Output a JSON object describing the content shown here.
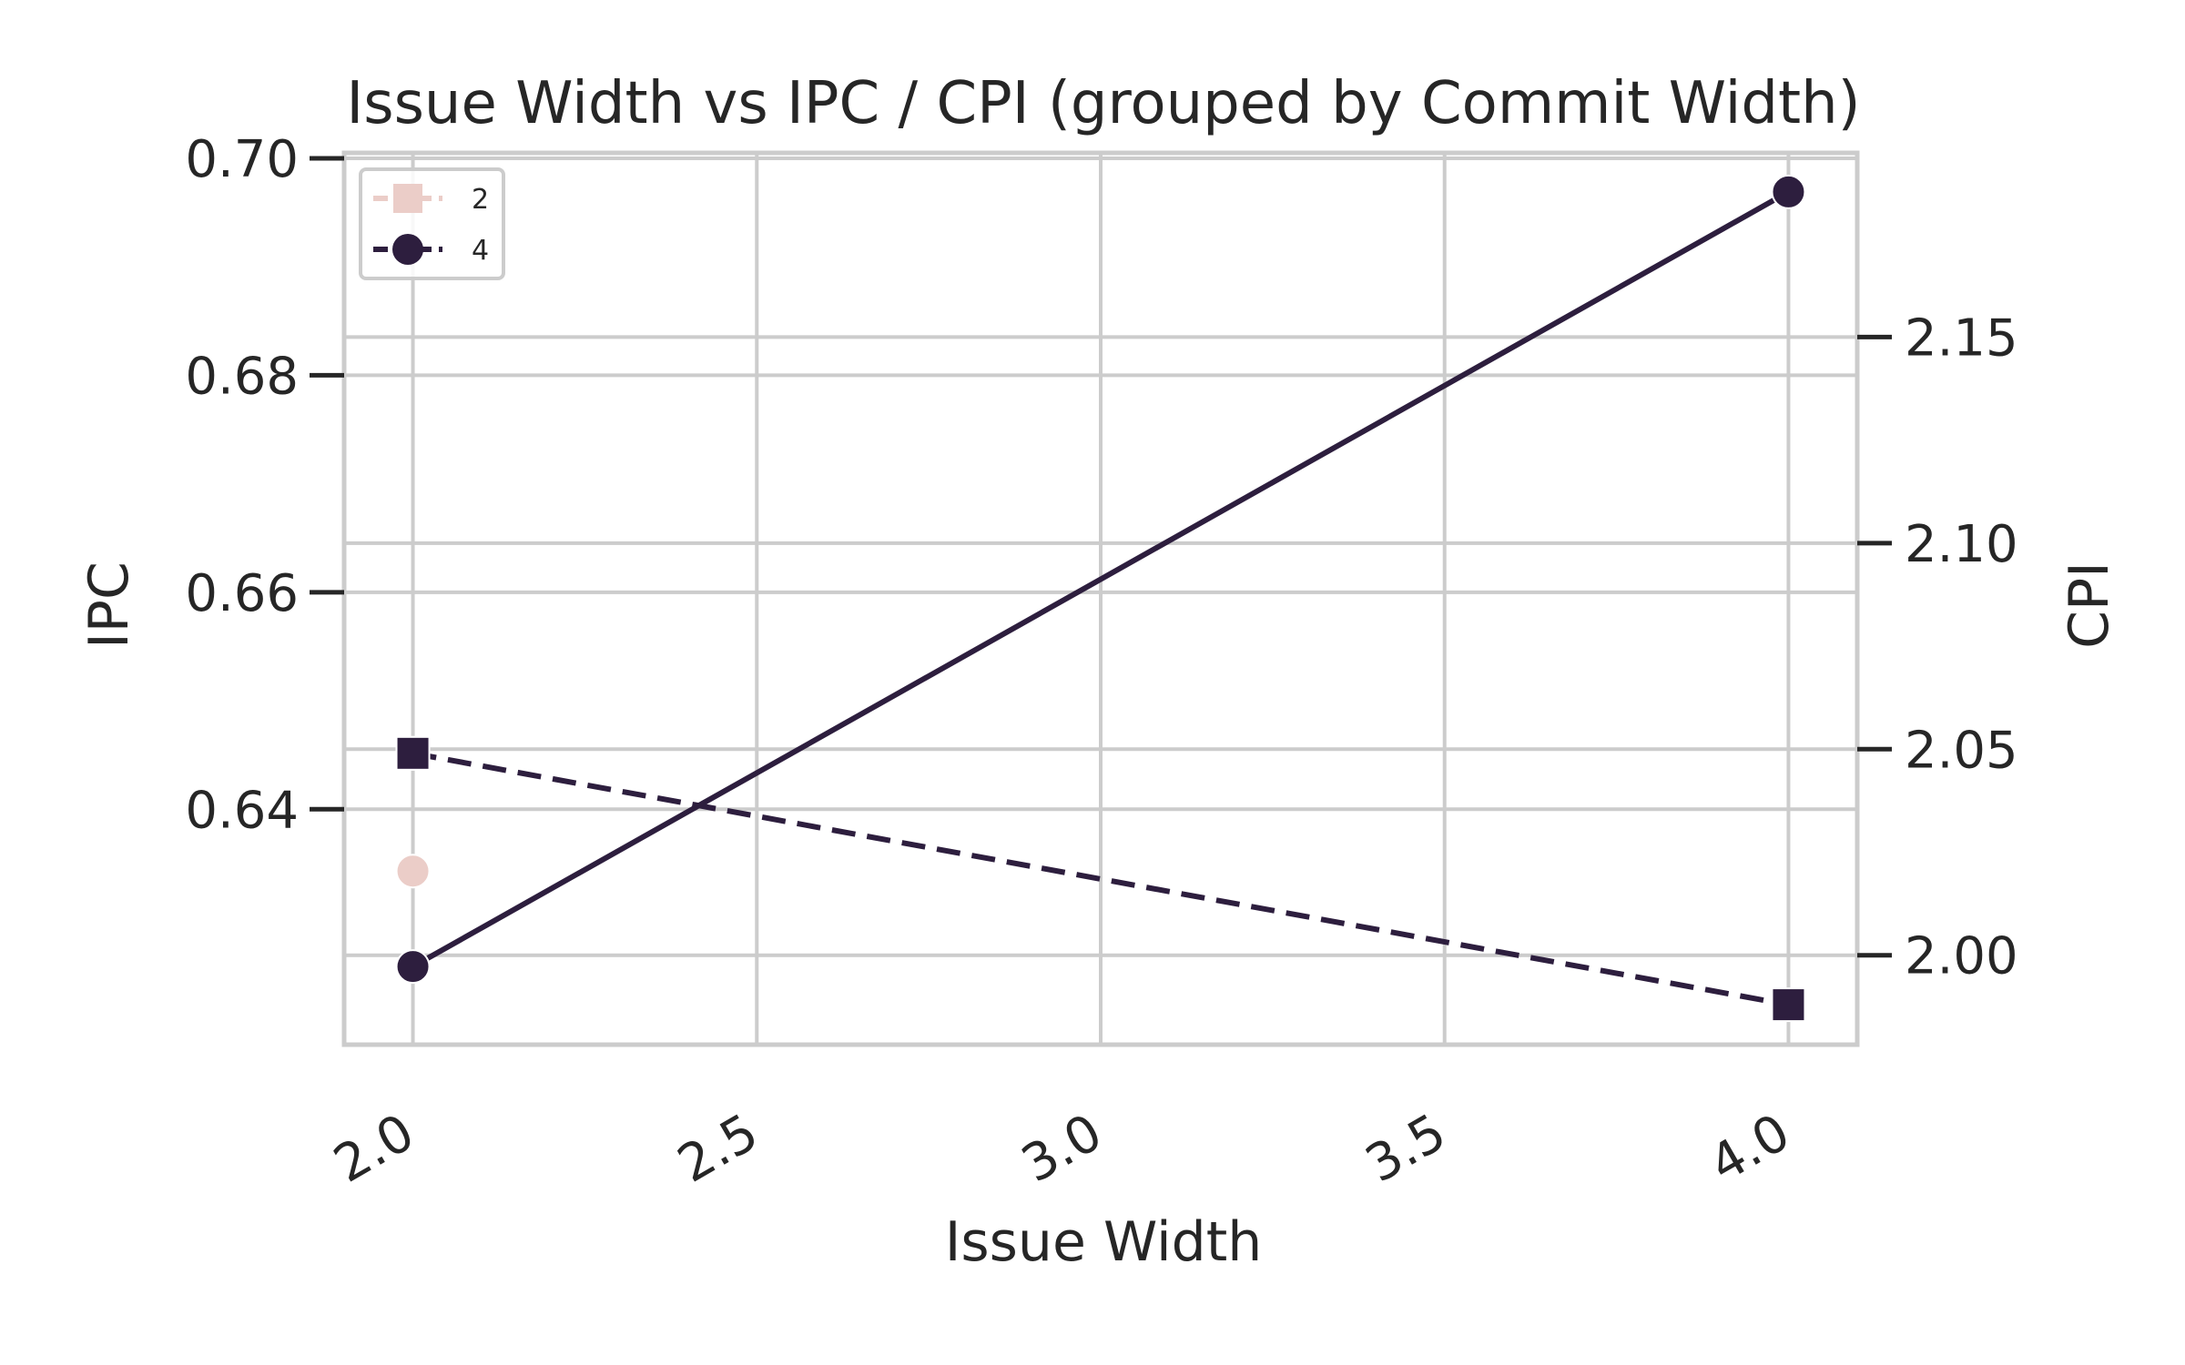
{
  "chart_data": {
    "type": "line",
    "title": "Issue Width vs IPC / CPI (grouped by Commit Width)",
    "xlabel": "Issue Width",
    "ylabel_left": "IPC",
    "ylabel_right": "CPI",
    "xlim": [
      1.9,
      4.1
    ],
    "ylim_left": [
      0.6183,
      0.7005
    ],
    "ylim_right": [
      1.9783,
      2.1947
    ],
    "x_ticks": [
      "2.0",
      "2.5",
      "3.0",
      "3.5",
      "4.0"
    ],
    "y_ticks_left": [
      "0.64",
      "0.66",
      "0.68",
      "0.70"
    ],
    "y_ticks_right": [
      "2.00",
      "2.05",
      "2.10",
      "2.15"
    ],
    "grid": true,
    "legend_position": "top-left",
    "legend": [
      {
        "label": "2",
        "color": "#ebcdc8"
      },
      {
        "label": "4",
        "color": "#2d1e3e"
      }
    ],
    "series": [
      {
        "name": "2",
        "axis": "IPC",
        "style": "solid",
        "marker": "circle",
        "color": "#ebcdc8",
        "x": [
          2.0
        ],
        "y": [
          0.6343
        ]
      },
      {
        "name": "2",
        "axis": "CPI",
        "style": "dashed",
        "marker": "square",
        "color": "#ebcdc8",
        "x": [
          2.0
        ],
        "y": [
          2.049
        ]
      },
      {
        "name": "4",
        "axis": "IPC",
        "style": "solid",
        "marker": "circle",
        "color": "#2d1e3e",
        "x": [
          2.0,
          4.0
        ],
        "y": [
          0.6255,
          0.6969
        ]
      },
      {
        "name": "4",
        "axis": "CPI",
        "style": "dashed",
        "marker": "square",
        "color": "#2d1e3e",
        "x": [
          2.0,
          4.0
        ],
        "y": [
          2.049,
          1.988
        ]
      }
    ]
  }
}
